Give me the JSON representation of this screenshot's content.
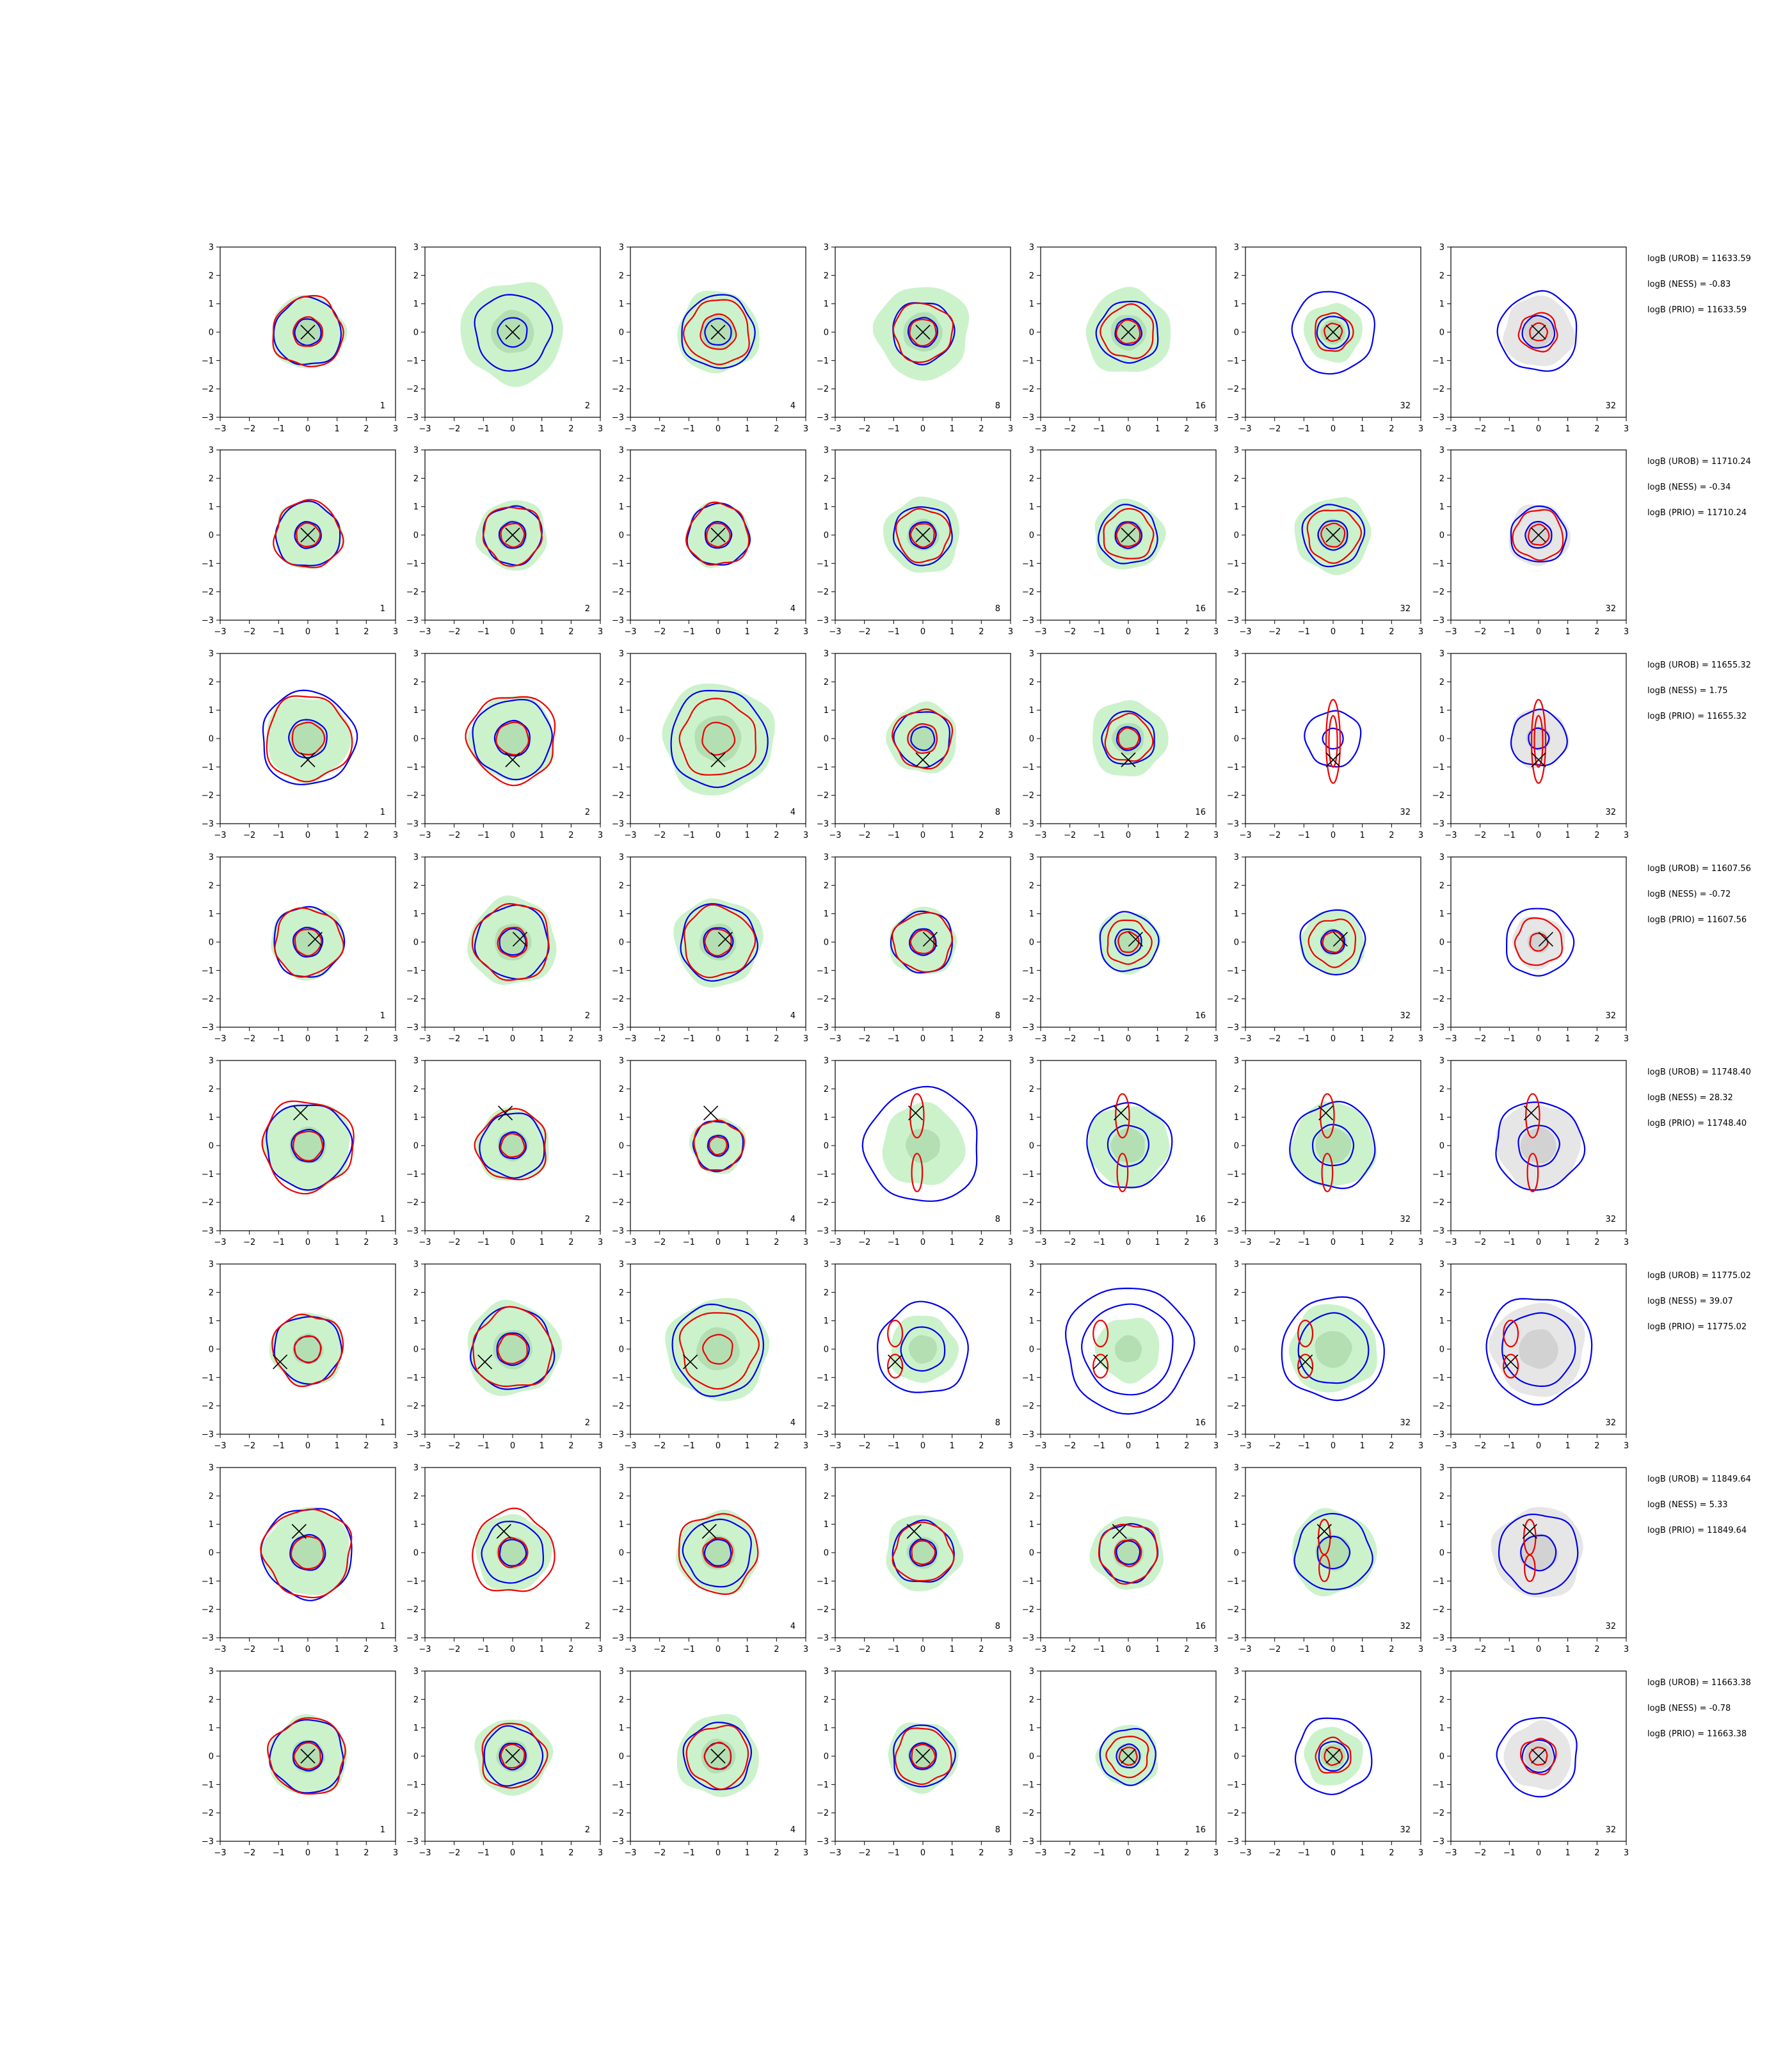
{
  "figure": {
    "rows": 8,
    "cols": 7,
    "colors": {
      "fill_green": "#ccf2cc",
      "fill_green_inner": "#b3dfb3",
      "fill_gray": "#e6e6e6",
      "fill_gray_inner": "#d2d2d2",
      "contour_blue": "#0000ee",
      "contour_red": "#ee0000",
      "marker": "#000000"
    }
  },
  "chart_data": {
    "type": "contour",
    "xlim": [
      -3,
      3
    ],
    "ylim": [
      -3,
      3
    ],
    "ticks": [
      "−3",
      "−2",
      "−1",
      "0",
      "1",
      "2",
      "3"
    ],
    "column_labels": [
      "1",
      "2",
      "4",
      "8",
      "16",
      "32",
      "32"
    ],
    "rows": [
      {
        "marker": [
          0.0,
          0.0
        ],
        "annotations": [
          "logB (UROB) = 11633.59",
          "logB (NESS) = -0.83",
          "logB (PRIO) = 11633.59"
        ],
        "panels": [
          {
            "fill": 1.25,
            "blue": [
              1.15,
              0.45
            ],
            "red": [
              1.2,
              0.5
            ],
            "red_tall": 0
          },
          {
            "fill": 1.75,
            "blue": [
              1.3,
              0.5
            ],
            "red": [
              0.0,
              0.0
            ],
            "red_tall": 0
          },
          {
            "fill": 1.4,
            "blue": [
              1.25,
              0.45
            ],
            "red": [
              1.1,
              0.6
            ],
            "red_tall": 0
          },
          {
            "fill": 1.6,
            "blue": [
              1.05,
              0.5
            ],
            "red": [
              1.0,
              0.45
            ],
            "red_tall": 0
          },
          {
            "fill": 1.45,
            "blue": [
              1.05,
              0.45
            ],
            "red": [
              0.9,
              0.4
            ],
            "red_tall": 0
          },
          {
            "fill": 1.0,
            "blue": [
              1.4,
              0.55
            ],
            "red": [
              0.65,
              0.3
            ],
            "red_tall": 0
          },
          {
            "fill": 1.2,
            "blue": [
              1.35,
              0.55
            ],
            "red": [
              0.65,
              0.3
            ],
            "red_tall": 0
          }
        ]
      },
      {
        "marker": [
          0.0,
          0.0
        ],
        "annotations": [
          "logB (UROB) = 11710.24",
          "logB (NESS) = -0.34",
          "logB (PRIO) = 11710.24"
        ],
        "panels": [
          {
            "fill": 1.15,
            "blue": [
              1.1,
              0.45
            ],
            "red": [
              1.15,
              0.4
            ],
            "red_tall": 0
          },
          {
            "fill": 1.2,
            "blue": [
              1.0,
              0.45
            ],
            "red": [
              1.0,
              0.4
            ],
            "red_tall": 0
          },
          {
            "fill": 1.1,
            "blue": [
              1.05,
              0.45
            ],
            "red": [
              1.05,
              0.4
            ],
            "red_tall": 0
          },
          {
            "fill": 1.3,
            "blue": [
              1.0,
              0.45
            ],
            "red": [
              0.9,
              0.4
            ],
            "red_tall": 0
          },
          {
            "fill": 1.2,
            "blue": [
              1.0,
              0.45
            ],
            "red": [
              0.85,
              0.4
            ],
            "red_tall": 0
          },
          {
            "fill": 1.3,
            "blue": [
              1.05,
              0.5
            ],
            "red": [
              0.9,
              0.4
            ],
            "red_tall": 0
          },
          {
            "fill": 1.05,
            "blue": [
              0.95,
              0.45
            ],
            "red": [
              0.85,
              0.35
            ],
            "red_tall": 0
          }
        ]
      },
      {
        "marker": [
          0.0,
          -0.75
        ],
        "annotations": [
          "logB (UROB) = 11655.32",
          "logB (NESS) = 1.75",
          "logB (PRIO) = 11655.32"
        ],
        "panels": [
          {
            "fill": 1.45,
            "blue": [
              1.6,
              0.65
            ],
            "red": [
              1.45,
              0.55
            ],
            "red_tall": 0
          },
          {
            "fill": 1.45,
            "blue": [
              1.35,
              0.6
            ],
            "red": [
              1.5,
              0.55
            ],
            "red_tall": 0
          },
          {
            "fill": 1.9,
            "blue": [
              1.65,
              0.0
            ],
            "red": [
              1.3,
              0.55
            ],
            "red_tall": 0
          },
          {
            "fill": 1.2,
            "blue": [
              0.95,
              0.4
            ],
            "red": [
              1.0,
              0.5
            ],
            "red_tall": 0
          },
          {
            "fill": 1.3,
            "blue": [
              0.9,
              0.4
            ],
            "red": [
              0.8,
              0.35
            ],
            "red_tall": 0
          },
          {
            "fill": 0.0,
            "blue": [
              0.95,
              0.35
            ],
            "red": [
              0.0,
              0.0
            ],
            "red_tall": 1
          },
          {
            "fill": 1.0,
            "blue": [
              0.95,
              0.35
            ],
            "red": [
              0.0,
              0.0
            ],
            "red_tall": 1
          }
        ]
      },
      {
        "marker": [
          0.25,
          0.1
        ],
        "annotations": [
          "logB (UROB) = 11607.56",
          "logB (NESS) = -0.72",
          "logB (PRIO) = 11607.56"
        ],
        "panels": [
          {
            "fill": 1.25,
            "blue": [
              1.2,
              0.5
            ],
            "red": [
              1.15,
              0.45
            ],
            "red_tall": 0
          },
          {
            "fill": 1.5,
            "blue": [
              1.25,
              0.45
            ],
            "red": [
              1.3,
              0.5
            ],
            "red_tall": 0
          },
          {
            "fill": 1.5,
            "blue": [
              1.3,
              0.5
            ],
            "red": [
              1.2,
              0.45
            ],
            "red_tall": 0
          },
          {
            "fill": 1.15,
            "blue": [
              1.05,
              0.45
            ],
            "red": [
              1.0,
              0.4
            ],
            "red_tall": 0
          },
          {
            "fill": 1.05,
            "blue": [
              1.0,
              0.45
            ],
            "red": [
              0.75,
              0.35
            ],
            "red_tall": 0
          },
          {
            "fill": 1.1,
            "blue": [
              1.1,
              0.4
            ],
            "red": [
              0.8,
              0.35
            ],
            "red_tall": 0
          },
          {
            "fill": 0.9,
            "blue": [
              1.15,
              0.0
            ],
            "red": [
              0.8,
              0.3
            ],
            "red_tall": 0
          }
        ]
      },
      {
        "marker": [
          -0.25,
          1.15
        ],
        "annotations": [
          "logB (UROB) = 11748.40",
          "logB (NESS) = 28.32",
          "logB (PRIO) = 11748.40"
        ],
        "panels": [
          {
            "fill": 1.5,
            "blue": [
              1.45,
              0.55
            ],
            "red": [
              1.55,
              0.5
            ],
            "red_tall": 0
          },
          {
            "fill": 1.25,
            "blue": [
              1.1,
              0.45
            ],
            "red": [
              1.2,
              0.4
            ],
            "red_tall": 0
          },
          {
            "fill": 0.95,
            "blue": [
              0.85,
              0.35
            ],
            "red": [
              0.85,
              0.3
            ],
            "red_tall": 0
          },
          {
            "fill": 1.4,
            "blue": [
              1.95,
              0.0
            ],
            "red": [
              0.0,
              0.0
            ],
            "red_tall": 2
          },
          {
            "fill": 1.4,
            "blue": [
              1.45,
              0.7
            ],
            "red": [
              0.0,
              0.0
            ],
            "red_tall": 2
          },
          {
            "fill": 1.45,
            "blue": [
              1.45,
              0.7
            ],
            "red": [
              0.0,
              0.0
            ],
            "red_tall": 2
          },
          {
            "fill": 1.45,
            "blue": [
              1.5,
              0.7
            ],
            "red": [
              0.0,
              0.0
            ],
            "red_tall": 2
          }
        ]
      },
      {
        "marker": [
          -0.95,
          -0.45
        ],
        "annotations": [
          "logB (UROB) = 11775.02",
          "logB (NESS) = 39.07",
          "logB (PRIO) = 11775.02"
        ],
        "panels": [
          {
            "fill": 1.25,
            "blue": [
              1.15,
              0.45
            ],
            "red": [
              1.2,
              0.45
            ],
            "red_tall": 0
          },
          {
            "fill": 1.6,
            "blue": [
              1.4,
              0.55
            ],
            "red": [
              1.35,
              0.5
            ],
            "red_tall": 0
          },
          {
            "fill": 1.75,
            "blue": [
              1.55,
              0.0
            ],
            "red": [
              1.3,
              0.5
            ],
            "red_tall": 0
          },
          {
            "fill": 1.15,
            "blue": [
              1.55,
              0.75
            ],
            "red": [
              0.0,
              0.0
            ],
            "red_tall": 3
          },
          {
            "fill": 1.1,
            "blue": [
              2.15,
              1.55
            ],
            "red": [
              0.0,
              0.0
            ],
            "red_tall": 3
          },
          {
            "fill": 1.5,
            "blue": [
              1.75,
              1.2
            ],
            "red": [
              0.0,
              0.0
            ],
            "red_tall": 3
          },
          {
            "fill": 1.6,
            "blue": [
              1.8,
              1.25
            ],
            "red": [
              0.0,
              0.0
            ],
            "red_tall": 3
          }
        ]
      },
      {
        "marker": [
          -0.3,
          0.75
        ],
        "annotations": [
          "logB (UROB) = 11849.64",
          "logB (NESS) = 5.33",
          "logB (PRIO) = 11849.64"
        ],
        "panels": [
          {
            "fill": 1.5,
            "blue": [
              1.55,
              0.6
            ],
            "red": [
              1.5,
              0.55
            ],
            "red_tall": 0
          },
          {
            "fill": 1.3,
            "blue": [
              1.05,
              0.45
            ],
            "red": [
              1.4,
              0.5
            ],
            "red_tall": 0
          },
          {
            "fill": 1.4,
            "blue": [
              1.15,
              0.45
            ],
            "red": [
              1.35,
              0.5
            ],
            "red_tall": 0
          },
          {
            "fill": 1.3,
            "blue": [
              1.05,
              0.45
            ],
            "red": [
              1.0,
              0.4
            ],
            "red_tall": 0
          },
          {
            "fill": 1.25,
            "blue": [
              1.0,
              0.4
            ],
            "red": [
              1.0,
              0.45
            ],
            "red_tall": 0
          },
          {
            "fill": 1.45,
            "blue": [
              1.3,
              0.55
            ],
            "red": [
              0.0,
              0.0
            ],
            "red_tall": 4
          },
          {
            "fill": 1.55,
            "blue": [
              1.35,
              0.6
            ],
            "red": [
              0.0,
              0.0
            ],
            "red_tall": 4
          }
        ]
      },
      {
        "marker": [
          0.0,
          0.0
        ],
        "annotations": [
          "logB (UROB) = 11663.38",
          "logB (NESS) = -0.78",
          "logB (PRIO) = 11663.38"
        ],
        "panels": [
          {
            "fill": 1.35,
            "blue": [
              1.25,
              0.5
            ],
            "red": [
              1.3,
              0.45
            ],
            "red_tall": 0
          },
          {
            "fill": 1.3,
            "blue": [
              1.0,
              0.45
            ],
            "red": [
              1.1,
              0.4
            ],
            "red_tall": 0
          },
          {
            "fill": 1.4,
            "blue": [
              1.15,
              0.45
            ],
            "red": [
              1.05,
              0.45
            ],
            "red_tall": 0
          },
          {
            "fill": 1.2,
            "blue": [
              1.05,
              0.45
            ],
            "red": [
              0.95,
              0.4
            ],
            "red_tall": 0
          },
          {
            "fill": 1.05,
            "blue": [
              0.95,
              0.4
            ],
            "red": [
              0.7,
              0.3
            ],
            "red_tall": 0
          },
          {
            "fill": 1.0,
            "blue": [
              1.3,
              0.5
            ],
            "red": [
              0.6,
              0.3
            ],
            "red_tall": 0
          },
          {
            "fill": 1.15,
            "blue": [
              1.35,
              0.55
            ],
            "red": [
              0.6,
              0.3
            ],
            "red_tall": 0
          }
        ]
      }
    ]
  }
}
